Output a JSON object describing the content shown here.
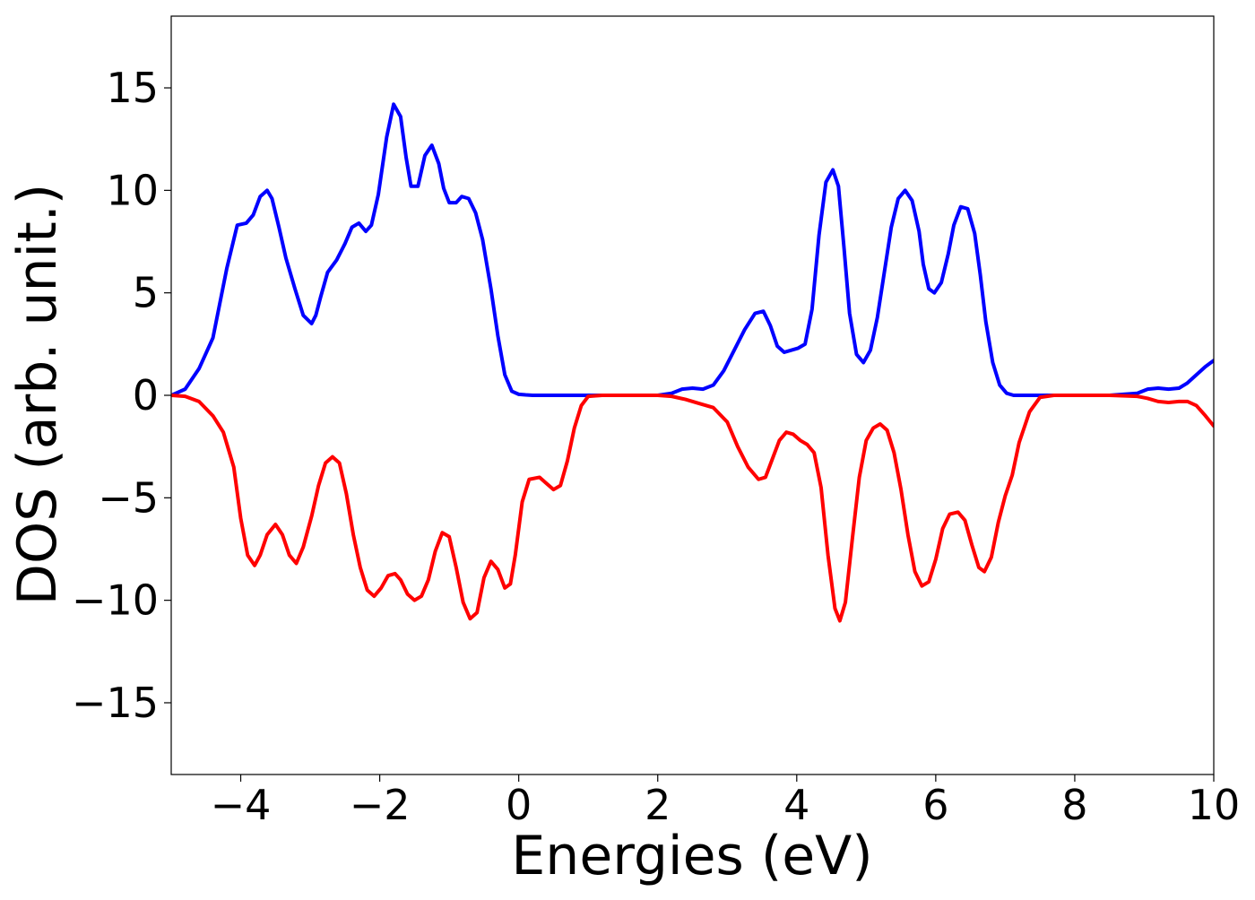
{
  "chart_data": {
    "type": "line",
    "title": "",
    "xlabel": "Energies (eV)",
    "ylabel": "DOS (arb. unit.)",
    "xlim": [
      -5,
      10
    ],
    "ylim": [
      -18.5,
      18.5
    ],
    "x_ticks": [
      -4,
      -2,
      0,
      2,
      4,
      6,
      8,
      10
    ],
    "x_tick_labels": [
      "−4",
      "−2",
      "0",
      "2",
      "4",
      "6",
      "8",
      "10"
    ],
    "y_ticks": [
      -15,
      -10,
      -5,
      0,
      5,
      10,
      15
    ],
    "y_tick_labels": [
      "−15",
      "−10",
      "−5",
      "0",
      "5",
      "10",
      "15"
    ],
    "grid": false,
    "legend": "none",
    "series": [
      {
        "color": "#0000ff",
        "x": [
          -5.0,
          -4.8,
          -4.6,
          -4.4,
          -4.2,
          -4.05,
          -3.92,
          -3.82,
          -3.72,
          -3.62,
          -3.55,
          -3.45,
          -3.35,
          -3.22,
          -3.1,
          -2.98,
          -2.92,
          -2.85,
          -2.75,
          -2.62,
          -2.5,
          -2.4,
          -2.3,
          -2.2,
          -2.12,
          -2.02,
          -1.9,
          -1.8,
          -1.7,
          -1.62,
          -1.55,
          -1.45,
          -1.35,
          -1.25,
          -1.15,
          -1.08,
          -1.0,
          -0.9,
          -0.82,
          -0.72,
          -0.62,
          -0.52,
          -0.4,
          -0.3,
          -0.2,
          -0.1,
          0.0,
          0.1,
          0.2,
          0.4,
          0.7,
          1.0,
          1.5,
          2.0,
          2.2,
          2.35,
          2.5,
          2.65,
          2.8,
          2.95,
          3.1,
          3.25,
          3.4,
          3.52,
          3.62,
          3.72,
          3.82,
          3.92,
          4.02,
          4.12,
          4.22,
          4.32,
          4.42,
          4.52,
          4.6,
          4.68,
          4.76,
          4.86,
          4.96,
          5.06,
          5.16,
          5.26,
          5.36,
          5.46,
          5.56,
          5.66,
          5.76,
          5.82,
          5.9,
          5.98,
          6.08,
          6.18,
          6.26,
          6.36,
          6.46,
          6.56,
          6.64,
          6.72,
          6.82,
          6.92,
          7.02,
          7.12,
          7.22,
          7.32,
          7.42,
          7.5,
          7.7,
          8.0,
          8.5,
          8.9,
          9.05,
          9.2,
          9.35,
          9.5,
          9.62,
          9.75,
          9.88,
          10.0
        ],
        "y": [
          0.0,
          0.3,
          1.3,
          2.8,
          6.2,
          8.3,
          8.4,
          8.8,
          9.7,
          10.0,
          9.6,
          8.2,
          6.7,
          5.2,
          3.9,
          3.5,
          3.9,
          4.8,
          6.0,
          6.6,
          7.4,
          8.2,
          8.4,
          8.0,
          8.3,
          9.8,
          12.6,
          14.2,
          13.6,
          11.6,
          10.2,
          10.2,
          11.7,
          12.2,
          11.3,
          10.1,
          9.4,
          9.4,
          9.7,
          9.6,
          8.9,
          7.6,
          5.2,
          2.9,
          1.0,
          0.2,
          0.05,
          0.02,
          0.0,
          0.0,
          0.0,
          0.0,
          0.0,
          0.0,
          0.1,
          0.3,
          0.35,
          0.3,
          0.5,
          1.2,
          2.2,
          3.2,
          4.0,
          4.1,
          3.4,
          2.4,
          2.1,
          2.2,
          2.3,
          2.5,
          4.2,
          7.8,
          10.4,
          11.0,
          10.2,
          7.2,
          4.0,
          2.0,
          1.6,
          2.2,
          3.8,
          6.0,
          8.2,
          9.6,
          10.0,
          9.5,
          8.0,
          6.4,
          5.2,
          5.0,
          5.5,
          6.9,
          8.3,
          9.2,
          9.1,
          7.9,
          5.9,
          3.6,
          1.6,
          0.5,
          0.1,
          0.0,
          0.0,
          0.0,
          0.0,
          0.0,
          0.0,
          0.0,
          0.0,
          0.1,
          0.3,
          0.35,
          0.3,
          0.35,
          0.6,
          1.0,
          1.4,
          1.7
        ]
      },
      {
        "color": "#ff0000",
        "x": [
          -5.0,
          -4.8,
          -4.6,
          -4.4,
          -4.25,
          -4.1,
          -4.0,
          -3.9,
          -3.8,
          -3.72,
          -3.62,
          -3.5,
          -3.4,
          -3.3,
          -3.2,
          -3.1,
          -2.98,
          -2.88,
          -2.78,
          -2.68,
          -2.58,
          -2.48,
          -2.38,
          -2.28,
          -2.18,
          -2.08,
          -1.98,
          -1.88,
          -1.78,
          -1.7,
          -1.6,
          -1.5,
          -1.4,
          -1.3,
          -1.2,
          -1.1,
          -1.0,
          -0.9,
          -0.8,
          -0.7,
          -0.6,
          -0.5,
          -0.4,
          -0.3,
          -0.2,
          -0.12,
          -0.05,
          0.05,
          0.15,
          0.3,
          0.4,
          0.5,
          0.6,
          0.7,
          0.8,
          0.9,
          1.0,
          1.2,
          1.5,
          2.0,
          2.2,
          2.4,
          2.6,
          2.8,
          3.0,
          3.15,
          3.3,
          3.45,
          3.55,
          3.65,
          3.75,
          3.85,
          3.95,
          4.05,
          4.15,
          4.25,
          4.35,
          4.45,
          4.55,
          4.62,
          4.7,
          4.8,
          4.9,
          5.0,
          5.1,
          5.2,
          5.3,
          5.4,
          5.5,
          5.6,
          5.7,
          5.8,
          5.9,
          6.0,
          6.1,
          6.2,
          6.32,
          6.42,
          6.52,
          6.62,
          6.7,
          6.8,
          6.9,
          7.0,
          7.1,
          7.2,
          7.35,
          7.5,
          7.7,
          8.0,
          8.5,
          8.9,
          9.05,
          9.2,
          9.35,
          9.5,
          9.62,
          9.75,
          9.88,
          10.0
        ],
        "y": [
          0.0,
          -0.05,
          -0.3,
          -1.0,
          -1.8,
          -3.5,
          -6.0,
          -7.8,
          -8.3,
          -7.8,
          -6.8,
          -6.3,
          -6.8,
          -7.8,
          -8.2,
          -7.4,
          -5.9,
          -4.4,
          -3.3,
          -3.0,
          -3.3,
          -4.8,
          -6.8,
          -8.4,
          -9.5,
          -9.8,
          -9.4,
          -8.8,
          -8.7,
          -9.0,
          -9.7,
          -10.0,
          -9.8,
          -9.0,
          -7.6,
          -6.7,
          -6.9,
          -8.4,
          -10.1,
          -10.9,
          -10.6,
          -8.9,
          -8.1,
          -8.5,
          -9.4,
          -9.2,
          -7.8,
          -5.2,
          -4.1,
          -4.0,
          -4.3,
          -4.6,
          -4.4,
          -3.2,
          -1.6,
          -0.5,
          -0.05,
          0.0,
          0.0,
          0.0,
          -0.05,
          -0.2,
          -0.4,
          -0.6,
          -1.3,
          -2.5,
          -3.5,
          -4.1,
          -4.0,
          -3.1,
          -2.2,
          -1.8,
          -1.9,
          -2.2,
          -2.4,
          -2.8,
          -4.5,
          -7.8,
          -10.4,
          -11.0,
          -10.1,
          -7.0,
          -4.0,
          -2.2,
          -1.6,
          -1.4,
          -1.7,
          -2.8,
          -4.6,
          -6.8,
          -8.6,
          -9.3,
          -9.1,
          -8.0,
          -6.5,
          -5.8,
          -5.7,
          -6.1,
          -7.3,
          -8.4,
          -8.6,
          -7.9,
          -6.2,
          -4.9,
          -3.9,
          -2.3,
          -0.8,
          -0.1,
          0.0,
          0.0,
          0.0,
          -0.05,
          -0.15,
          -0.3,
          -0.35,
          -0.3,
          -0.3,
          -0.5,
          -1.0,
          -1.5
        ]
      }
    ]
  }
}
